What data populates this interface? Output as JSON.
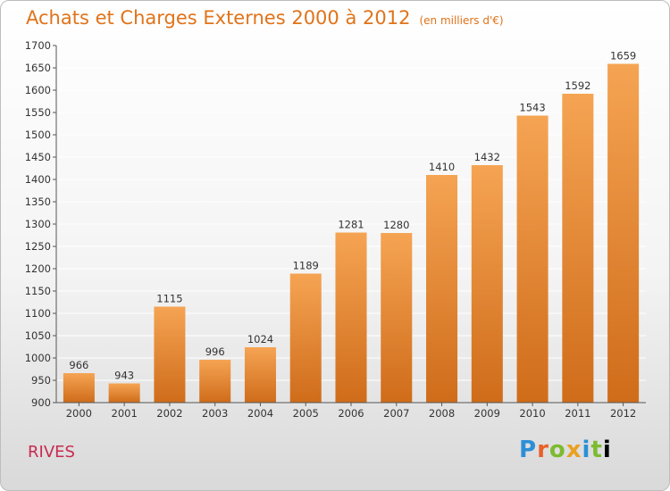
{
  "header": {
    "title": "Achats et Charges Externes 2000 à 2012",
    "unit": "(en milliers d'€)"
  },
  "footer": {
    "commune": "RIVES",
    "brand": "Proxiti"
  },
  "colors": {
    "bar_light": "#f5a453",
    "bar_dark": "#cf6c1a",
    "title": "#e0731a",
    "commune": "#c72c4f",
    "grid": "#ffffff"
  },
  "chart_data": {
    "type": "bar",
    "title": "Achats et Charges Externes 2000 à 2012",
    "subtitle": "(en milliers d'€)",
    "xlabel": "",
    "ylabel": "",
    "categories": [
      "2000",
      "2001",
      "2002",
      "2003",
      "2004",
      "2005",
      "2006",
      "2007",
      "2008",
      "2009",
      "2010",
      "2011",
      "2012"
    ],
    "values": [
      966,
      943,
      1115,
      996,
      1024,
      1189,
      1281,
      1280,
      1410,
      1432,
      1543,
      1592,
      1659
    ],
    "ylim": [
      900,
      1700
    ],
    "yticks": [
      900,
      950,
      1000,
      1050,
      1100,
      1150,
      1200,
      1250,
      1300,
      1350,
      1400,
      1450,
      1500,
      1550,
      1600,
      1650,
      1700
    ],
    "grid": true,
    "data_labels": true
  }
}
